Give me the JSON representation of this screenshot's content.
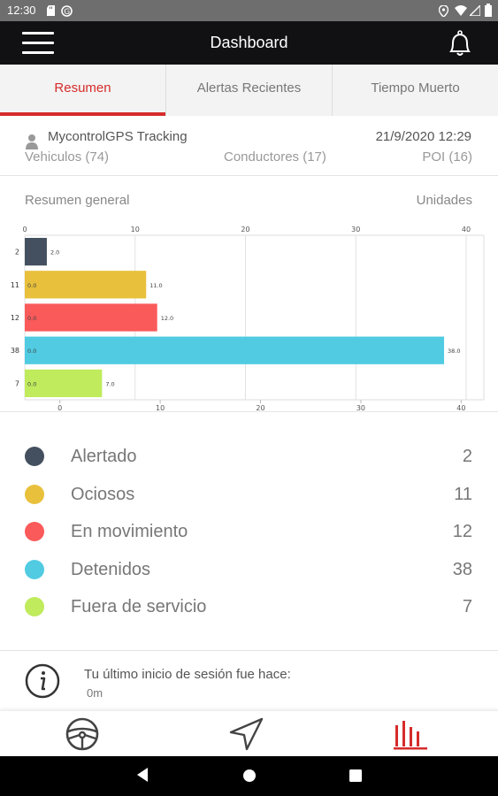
{
  "status_bar": {
    "time": "12:30"
  },
  "header": {
    "title": "Dashboard"
  },
  "tabs": [
    {
      "label": "Resumen",
      "active": true
    },
    {
      "label": "Alertas Recientes",
      "active": false
    },
    {
      "label": "Tiempo Muerto",
      "active": false
    }
  ],
  "info": {
    "company": "MycontrolGPS Tracking",
    "datetime": "21/9/2020 12:29",
    "vehicles": "Vehiculos (74)",
    "drivers": "Conductores (17)",
    "poi": "POI (16)"
  },
  "chart_header": {
    "left": "Resumen general",
    "right": "Unidades"
  },
  "chart_data": {
    "type": "bar",
    "orientation": "horizontal",
    "categories": [
      "2",
      "11",
      "12",
      "38",
      "7"
    ],
    "values": [
      2,
      11,
      12,
      38,
      7
    ],
    "value_labels": [
      "2.0",
      "11.0",
      "12.0",
      "38.0",
      "7.0"
    ],
    "inner_labels": [
      "",
      "0.0",
      "0.0",
      "0.0",
      "0.0"
    ],
    "colors": [
      "#44505f",
      "#e8c03c",
      "#fa5a5a",
      "#50cbe2",
      "#bfeb5c"
    ],
    "top_axis": {
      "ticks": [
        0,
        10,
        20,
        30,
        40
      ],
      "xlim": [
        0,
        40
      ]
    },
    "bottom_axis": {
      "ticks": [
        0,
        10,
        20,
        30,
        40
      ],
      "xlim": [
        -3.5,
        40.5
      ]
    },
    "grid": true
  },
  "legend": [
    {
      "label": "Alertado",
      "value": "2",
      "color": "#44505f"
    },
    {
      "label": "Ociosos",
      "value": "11",
      "color": "#e8c03c"
    },
    {
      "label": "En movimiento",
      "value": "12",
      "color": "#fa5a5a"
    },
    {
      "label": "Detenidos",
      "value": "38",
      "color": "#50cbe2"
    },
    {
      "label": "Fuera de servicio",
      "value": "7",
      "color": "#bfeb5c"
    }
  ],
  "session": {
    "line1": "Tu último inicio de sesión fue hace:",
    "line2": "0m"
  },
  "bottom_nav": [
    {
      "icon": "steering-wheel-icon",
      "active": false
    },
    {
      "icon": "navigation-arrow-icon",
      "active": false
    },
    {
      "icon": "bar-chart-icon",
      "active": true
    }
  ],
  "colors": {
    "accent": "#d62b2b",
    "header_bg": "#111114"
  }
}
